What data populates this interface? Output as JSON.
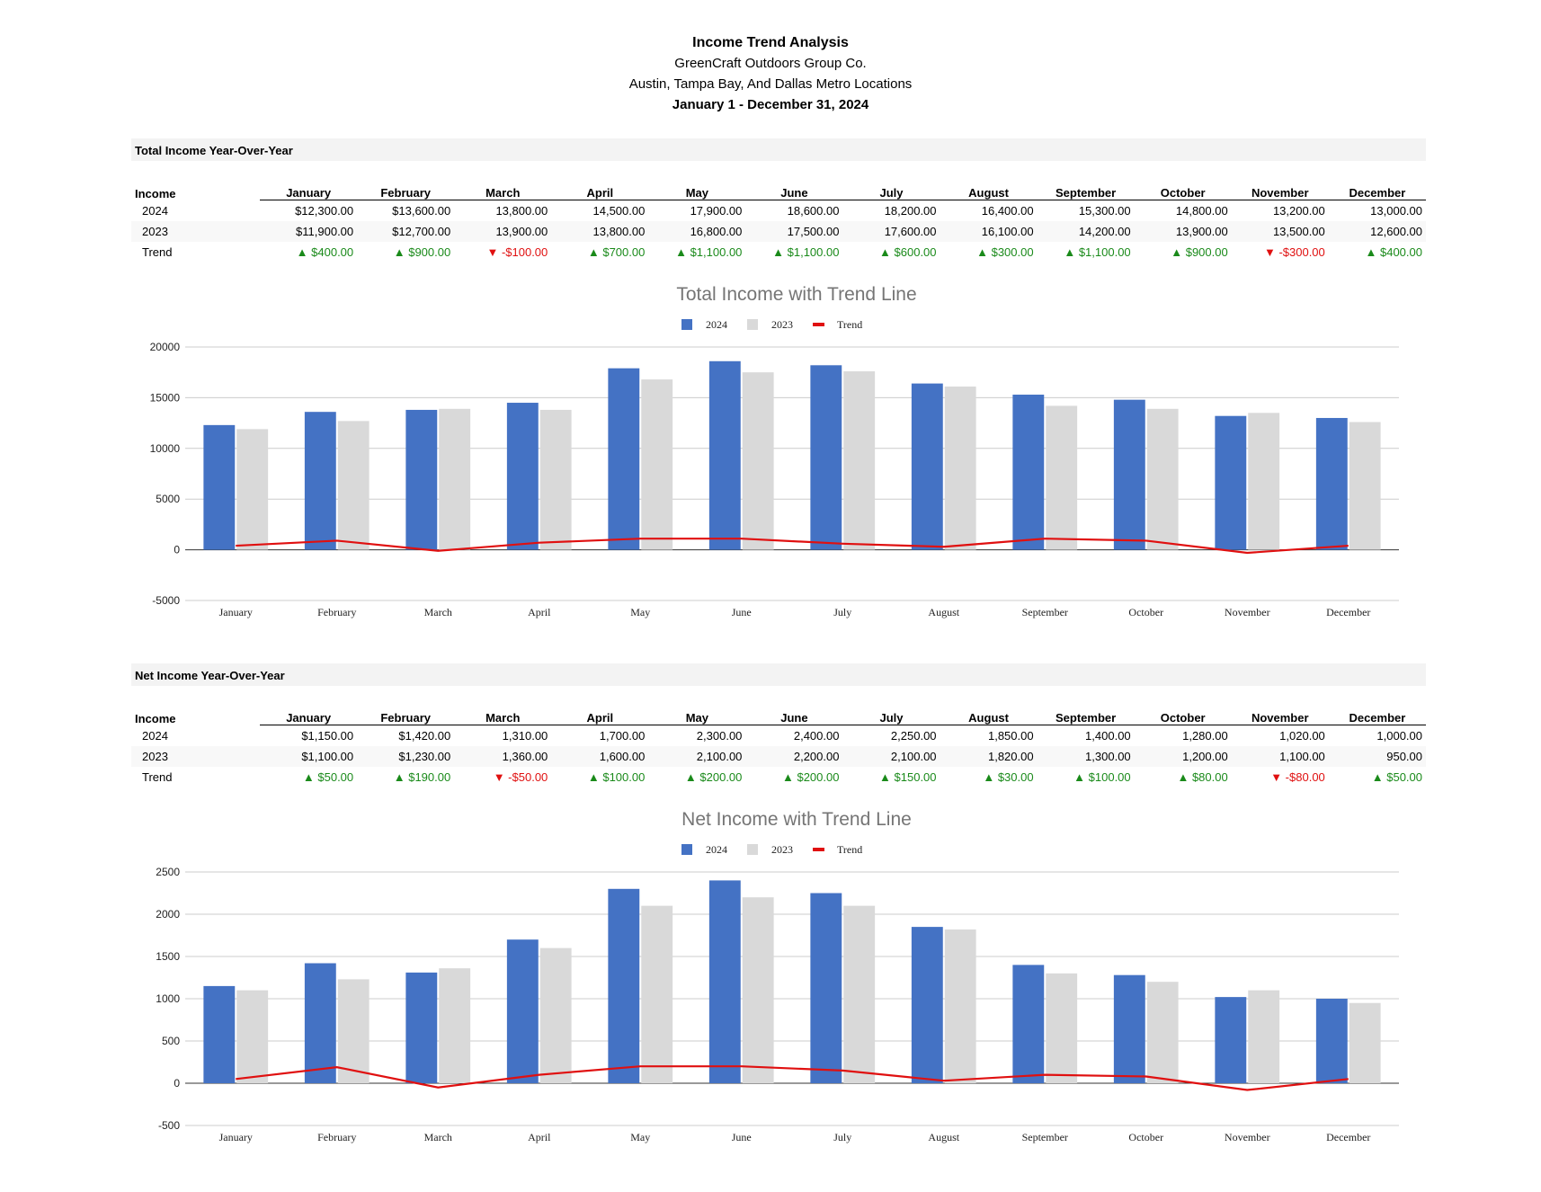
{
  "header": {
    "title": "Income Trend Analysis",
    "company": "GreenCraft Outdoors Group Co.",
    "locations": "Austin, Tampa Bay, And Dallas Metro Locations",
    "period": "January 1 - December 31, 2024"
  },
  "sections": [
    {
      "heading": "Total Income Year-Over-Year",
      "table": {
        "label_header": "Income",
        "months": [
          "January",
          "February",
          "March",
          "April",
          "May",
          "June",
          "July",
          "August",
          "September",
          "October",
          "November",
          "December"
        ],
        "rows": [
          {
            "label": "2024",
            "values": [
              "$12,300.00",
              "$13,600.00",
              "13,800.00",
              "14,500.00",
              "17,900.00",
              "18,600.00",
              "18,200.00",
              "16,400.00",
              "15,300.00",
              "14,800.00",
              "13,200.00",
              "13,000.00"
            ]
          },
          {
            "label": "2023",
            "values": [
              "$11,900.00",
              "$12,700.00",
              "13,900.00",
              "13,800.00",
              "16,800.00",
              "17,500.00",
              "17,600.00",
              "16,100.00",
              "14,200.00",
              "13,900.00",
              "13,500.00",
              "12,600.00"
            ]
          }
        ],
        "trend_label": "Trend",
        "trend": [
          {
            "dir": "up",
            "text": "▲ $400.00"
          },
          {
            "dir": "up",
            "text": "▲ $900.00"
          },
          {
            "dir": "down",
            "text": "▼ -$100.00"
          },
          {
            "dir": "up",
            "text": "▲ $700.00"
          },
          {
            "dir": "up",
            "text": "▲ $1,100.00"
          },
          {
            "dir": "up",
            "text": "▲ $1,100.00"
          },
          {
            "dir": "up",
            "text": "▲ $600.00"
          },
          {
            "dir": "up",
            "text": "▲ $300.00"
          },
          {
            "dir": "up",
            "text": "▲ $1,100.00"
          },
          {
            "dir": "up",
            "text": "▲ $900.00"
          },
          {
            "dir": "down",
            "text": "▼ -$300.00"
          },
          {
            "dir": "up",
            "text": "▲ $400.00"
          }
        ]
      }
    },
    {
      "heading": "Net Income Year-Over-Year",
      "table": {
        "label_header": "Income",
        "months": [
          "January",
          "February",
          "March",
          "April",
          "May",
          "June",
          "July",
          "August",
          "September",
          "October",
          "November",
          "December"
        ],
        "rows": [
          {
            "label": "2024",
            "values": [
              "$1,150.00",
              "$1,420.00",
              "1,310.00",
              "1,700.00",
              "2,300.00",
              "2,400.00",
              "2,250.00",
              "1,850.00",
              "1,400.00",
              "1,280.00",
              "1,020.00",
              "1,000.00"
            ]
          },
          {
            "label": "2023",
            "values": [
              "$1,100.00",
              "$1,230.00",
              "1,360.00",
              "1,600.00",
              "2,100.00",
              "2,200.00",
              "2,100.00",
              "1,820.00",
              "1,300.00",
              "1,200.00",
              "1,100.00",
              "950.00"
            ]
          }
        ],
        "trend_label": "Trend",
        "trend": [
          {
            "dir": "up",
            "text": "▲ $50.00"
          },
          {
            "dir": "up",
            "text": "▲ $190.00"
          },
          {
            "dir": "down",
            "text": "▼ -$50.00"
          },
          {
            "dir": "up",
            "text": "▲ $100.00"
          },
          {
            "dir": "up",
            "text": "▲ $200.00"
          },
          {
            "dir": "up",
            "text": "▲ $200.00"
          },
          {
            "dir": "up",
            "text": "▲ $150.00"
          },
          {
            "dir": "up",
            "text": "▲ $30.00"
          },
          {
            "dir": "up",
            "text": "▲ $100.00"
          },
          {
            "dir": "up",
            "text": "▲ $80.00"
          },
          {
            "dir": "down",
            "text": "▼ -$80.00"
          },
          {
            "dir": "up",
            "text": "▲ $50.00"
          }
        ]
      }
    }
  ],
  "colors": {
    "series_2024": "#4472c4",
    "series_2023": "#d9d9d9",
    "trend": "#e01010",
    "up": "#1a8a1a",
    "down": "#e01010"
  },
  "chart_data": [
    {
      "type": "bar",
      "title": "Total Income with Trend Line",
      "categories": [
        "January",
        "February",
        "March",
        "April",
        "May",
        "June",
        "July",
        "August",
        "September",
        "October",
        "November",
        "December"
      ],
      "series": [
        {
          "name": "2024",
          "type": "bar",
          "values": [
            12300,
            13600,
            13800,
            14500,
            17900,
            18600,
            18200,
            16400,
            15300,
            14800,
            13200,
            13000
          ]
        },
        {
          "name": "2023",
          "type": "bar",
          "values": [
            11900,
            12700,
            13900,
            13800,
            16800,
            17500,
            17600,
            16100,
            14200,
            13900,
            13500,
            12600
          ]
        },
        {
          "name": "Trend",
          "type": "line",
          "values": [
            400,
            900,
            -100,
            700,
            1100,
            1100,
            600,
            300,
            1100,
            900,
            -300,
            400
          ]
        }
      ],
      "ylim": [
        -5000,
        20000
      ],
      "yticks": [
        20000,
        15000,
        10000,
        5000,
        0,
        -5000
      ],
      "grid": true,
      "legend": "top-center"
    },
    {
      "type": "bar",
      "title": "Net Income with Trend Line",
      "categories": [
        "January",
        "February",
        "March",
        "April",
        "May",
        "June",
        "July",
        "August",
        "September",
        "October",
        "November",
        "December"
      ],
      "series": [
        {
          "name": "2024",
          "type": "bar",
          "values": [
            1150,
            1420,
            1310,
            1700,
            2300,
            2400,
            2250,
            1850,
            1400,
            1280,
            1020,
            1000
          ]
        },
        {
          "name": "2023",
          "type": "bar",
          "values": [
            1100,
            1230,
            1360,
            1600,
            2100,
            2200,
            2100,
            1820,
            1300,
            1200,
            1100,
            950
          ]
        },
        {
          "name": "Trend",
          "type": "line",
          "values": [
            50,
            190,
            -50,
            100,
            200,
            200,
            150,
            30,
            100,
            80,
            -80,
            50
          ]
        }
      ],
      "ylim": [
        -500,
        2500
      ],
      "yticks": [
        2500,
        2000,
        1500,
        1000,
        500,
        0,
        -500
      ],
      "grid": true,
      "legend": "top-center"
    }
  ]
}
